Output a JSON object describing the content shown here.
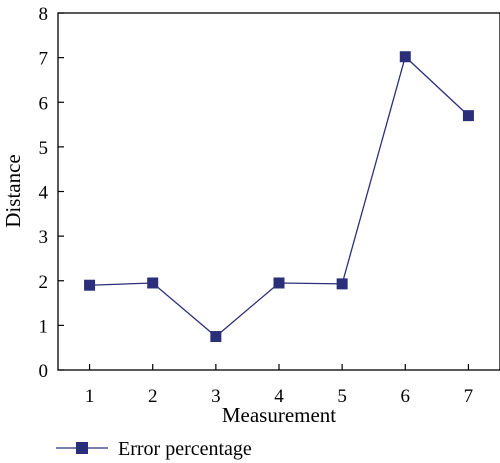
{
  "chart_data": {
    "type": "line",
    "xlabel": "Measurement",
    "ylabel": "Distance",
    "x": [
      1,
      2,
      3,
      4,
      5,
      6,
      7
    ],
    "xlim": [
      0.5,
      7.5
    ],
    "ylim": [
      0,
      8
    ],
    "xticks": [
      "1",
      "2",
      "3",
      "4",
      "5",
      "6",
      "7"
    ],
    "yticks": [
      "0",
      "1",
      "2",
      "3",
      "4",
      "5",
      "6",
      "7",
      "8"
    ],
    "grid": false,
    "legend_position": "bottom-left",
    "series": [
      {
        "name": "Error percentage",
        "values": [
          1.9,
          1.95,
          0.75,
          1.95,
          1.93,
          7.02,
          5.7
        ],
        "color": "#2b2f7a",
        "marker": "square"
      }
    ]
  }
}
